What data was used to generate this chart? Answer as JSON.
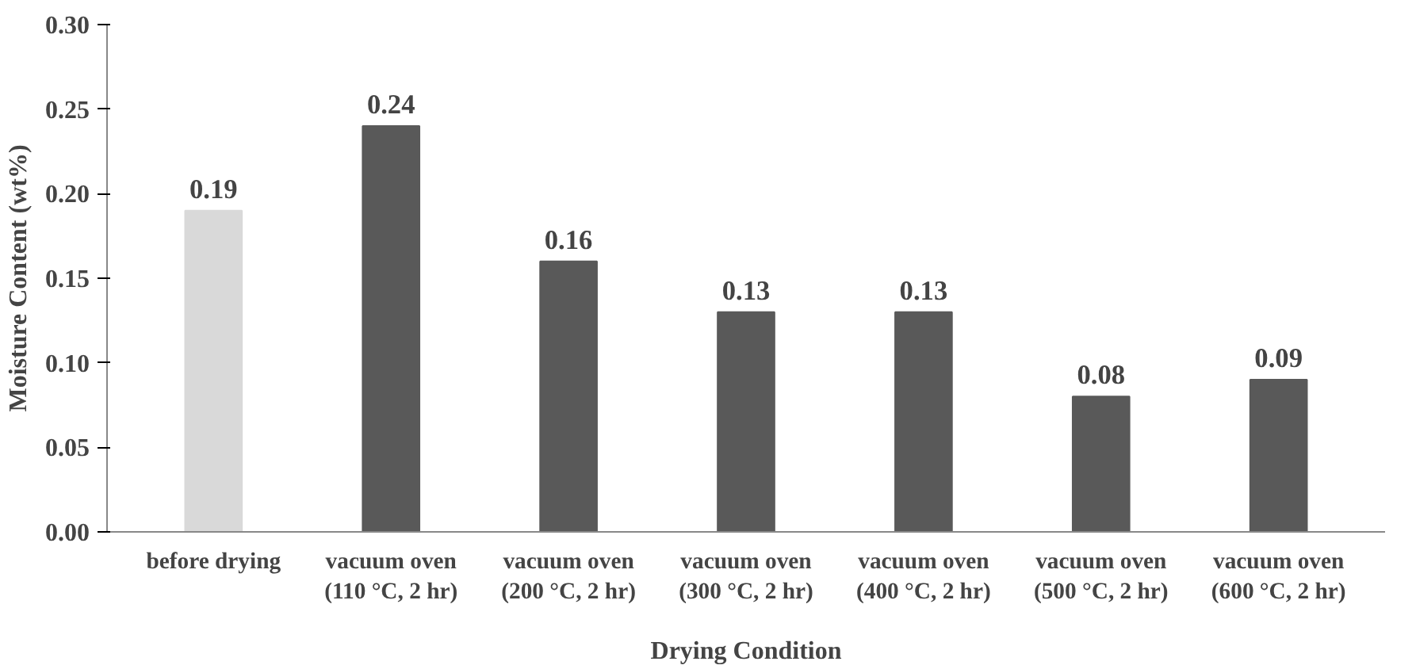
{
  "chart_data": {
    "type": "bar",
    "xlabel": "Drying Condition",
    "ylabel": "Moisture Content (wt%)",
    "categories": [
      "before drying",
      "vacuum oven\n(110 °C, 2 hr)",
      "vacuum oven\n(200 °C, 2 hr)",
      "vacuum oven\n(300 °C, 2 hr)",
      "vacuum oven\n(400 °C, 2 hr)",
      "vacuum oven\n(500 °C, 2 hr)",
      "vacuum oven\n(600 °C, 2 hr)"
    ],
    "values": [
      0.19,
      0.24,
      0.16,
      0.13,
      0.13,
      0.08,
      0.09
    ],
    "colors": [
      "#d9d9d9",
      "#595959",
      "#595959",
      "#595959",
      "#595959",
      "#595959",
      "#595959"
    ],
    "ylim": [
      0,
      0.3
    ],
    "yticks": [
      {
        "value": 0,
        "label": "0.00"
      },
      {
        "value": 0.05,
        "label": "0.05"
      },
      {
        "value": 0.1,
        "label": "0.10"
      },
      {
        "value": 0.15,
        "label": "0.15"
      },
      {
        "value": 0.2,
        "label": "0.20"
      },
      {
        "value": 0.25,
        "label": "0.25"
      },
      {
        "value": 0.3,
        "label": "0.30"
      }
    ],
    "data_labels": true,
    "grid": false
  }
}
